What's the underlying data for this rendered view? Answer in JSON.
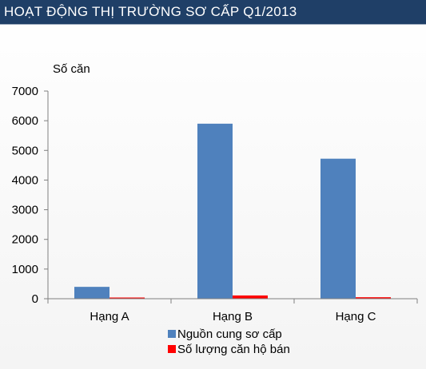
{
  "header": {
    "title": "HOẠT ĐỘNG THỊ TRƯỜNG SƠ CẤP Q1/2013"
  },
  "chart_data": {
    "type": "bar",
    "title": "HOẠT ĐỘNG THỊ TRƯỜNG SƠ CẤP Q1/2013",
    "ylabel": "Số căn",
    "xlabel": "",
    "categories": [
      "Hạng A",
      "Hạng B",
      "Hạng C"
    ],
    "ylim": [
      0,
      7000
    ],
    "yticks": [
      0,
      1000,
      2000,
      3000,
      4000,
      5000,
      6000,
      7000
    ],
    "grid": false,
    "legend_position": "bottom-right",
    "series": [
      {
        "name": "Nguồn cung sơ cấp",
        "color": "#4f81bd",
        "values": [
          400,
          5900,
          4720
        ]
      },
      {
        "name": "Số lượng căn hộ bán",
        "color": "#ff0000",
        "values": [
          15,
          110,
          50
        ]
      }
    ]
  }
}
